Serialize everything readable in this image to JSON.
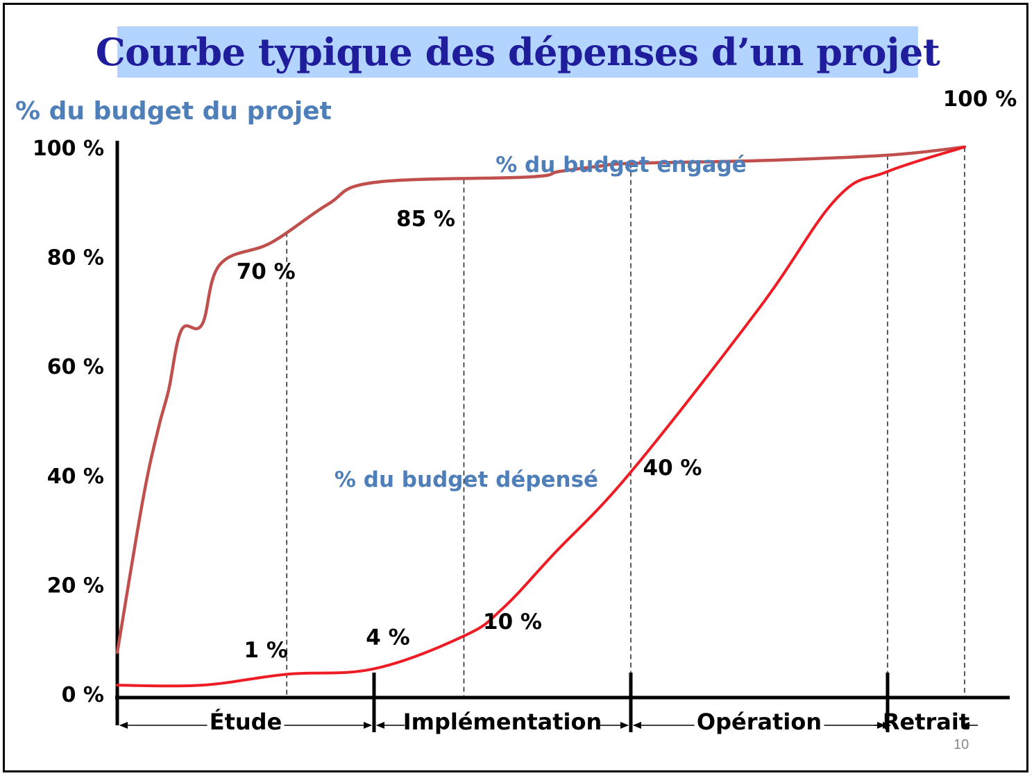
{
  "title": "Courbe typique des dépenses d’un projet",
  "colors": {
    "title_text": "#1f1d9c",
    "title_background": "#b3d4ff",
    "label_blue": "#4f7fb9",
    "engaged_line": "#c0504d",
    "spent_line": "#ee1c25"
  },
  "page_number": "10",
  "chart_data": {
    "type": "line",
    "ylabel": "% du budget du projet",
    "ylim": [
      0,
      100
    ],
    "yticks": [
      "100 %",
      "80 %",
      "60 %",
      "40 %",
      "20 %",
      "0 %"
    ],
    "ytick_values": [
      100,
      80,
      60,
      40,
      20,
      0
    ],
    "grid": false,
    "series": [
      {
        "name": "% du budget engagé",
        "color": "#c0504d",
        "points": [
          [
            0,
            7
          ],
          [
            0.1,
            35
          ],
          [
            0.16,
            48
          ],
          [
            0.2,
            55
          ],
          [
            0.25,
            66
          ],
          [
            0.33,
            67
          ],
          [
            0.4,
            78
          ],
          [
            0.6,
            82
          ],
          [
            0.82,
            89
          ],
          [
            1.0,
            93
          ],
          [
            1.6,
            94
          ],
          [
            1.72,
            95
          ],
          [
            1.88,
            96
          ],
          [
            2.0,
            96.5
          ],
          [
            2.5,
            97
          ],
          [
            3.0,
            98
          ],
          [
            3.3,
            99.5
          ]
        ]
      },
      {
        "name": "% du budget dépensé",
        "color": "#ee1c25",
        "points": [
          [
            0,
            1
          ],
          [
            0.33,
            1
          ],
          [
            0.66,
            3
          ],
          [
            1.0,
            4
          ],
          [
            1.35,
            10
          ],
          [
            1.5,
            15
          ],
          [
            1.7,
            25
          ],
          [
            2.0,
            40
          ],
          [
            2.5,
            70
          ],
          [
            2.8,
            90
          ],
          [
            3.0,
            95
          ],
          [
            3.3,
            99.5
          ]
        ]
      }
    ],
    "annotations": [
      {
        "text": "70 %",
        "x": 0.66,
        "y": 67
      },
      {
        "text": "85 %",
        "x": 1.35,
        "y": 82
      },
      {
        "text": "100 %",
        "x": 3.3,
        "y": 100
      },
      {
        "text": "1 %",
        "x": 0.66,
        "y": 1
      },
      {
        "text": "4 %",
        "x": 1.0,
        "y": 4
      },
      {
        "text": "10 %",
        "x": 1.35,
        "y": 10
      },
      {
        "text": "40 %",
        "x": 2.0,
        "y": 40
      }
    ],
    "phases": [
      {
        "label": "Étude",
        "from": 0,
        "to": 1
      },
      {
        "label": "Implémentation",
        "from": 1,
        "to": 2
      },
      {
        "label": "Opération",
        "from": 2,
        "to": 3
      },
      {
        "label": "Retrait",
        "from": 3,
        "to": 3.3
      }
    ]
  }
}
